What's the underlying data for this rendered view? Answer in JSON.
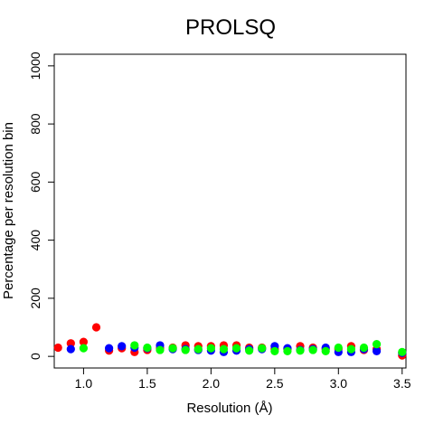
{
  "chart_data": {
    "type": "scatter",
    "title": "PROLSQ",
    "xlabel": "Resolution (Å)",
    "ylabel": "Percentage per resolution bin",
    "xlim": [
      0.77,
      3.53
    ],
    "ylim": [
      -40,
      1040
    ],
    "xticks": [
      1.0,
      1.5,
      2.0,
      2.5,
      3.0,
      3.5
    ],
    "xtick_labels": [
      "1.0",
      "1.5",
      "2.0",
      "2.5",
      "3.0",
      "3.5"
    ],
    "yticks": [
      0,
      200,
      400,
      600,
      800,
      1000
    ],
    "ytick_labels": [
      "0",
      "200",
      "400",
      "600",
      "800",
      "1000"
    ],
    "series": [
      {
        "name": "red",
        "color": "#ff0000",
        "points": [
          [
            0.8,
            30
          ],
          [
            0.9,
            45
          ],
          [
            1.0,
            50
          ],
          [
            1.1,
            100
          ],
          [
            1.2,
            20
          ],
          [
            1.3,
            28
          ],
          [
            1.4,
            15
          ],
          [
            1.5,
            22
          ],
          [
            1.6,
            28
          ],
          [
            1.7,
            30
          ],
          [
            1.8,
            38
          ],
          [
            1.9,
            35
          ],
          [
            2.0,
            35
          ],
          [
            2.1,
            38
          ],
          [
            2.2,
            38
          ],
          [
            2.3,
            30
          ],
          [
            2.4,
            30
          ],
          [
            2.5,
            25
          ],
          [
            2.6,
            25
          ],
          [
            2.7,
            35
          ],
          [
            2.8,
            30
          ],
          [
            2.9,
            25
          ],
          [
            3.0,
            25
          ],
          [
            3.1,
            35
          ],
          [
            3.2,
            22
          ],
          [
            3.3,
            25
          ],
          [
            3.5,
            3
          ]
        ]
      },
      {
        "name": "blue",
        "color": "#0000ff",
        "points": [
          [
            0.9,
            25
          ],
          [
            1.2,
            28
          ],
          [
            1.3,
            35
          ],
          [
            1.4,
            30
          ],
          [
            1.5,
            28
          ],
          [
            1.6,
            38
          ],
          [
            1.7,
            25
          ],
          [
            1.8,
            25
          ],
          [
            1.9,
            22
          ],
          [
            2.0,
            20
          ],
          [
            2.1,
            15
          ],
          [
            2.2,
            20
          ],
          [
            2.3,
            25
          ],
          [
            2.4,
            25
          ],
          [
            2.5,
            35
          ],
          [
            2.6,
            28
          ],
          [
            2.7,
            22
          ],
          [
            2.8,
            25
          ],
          [
            2.9,
            30
          ],
          [
            3.0,
            15
          ],
          [
            3.1,
            15
          ],
          [
            3.2,
            25
          ],
          [
            3.3,
            18
          ],
          [
            3.5,
            12
          ]
        ]
      },
      {
        "name": "green",
        "color": "#00ff00",
        "points": [
          [
            1.0,
            28
          ],
          [
            1.4,
            38
          ],
          [
            1.5,
            30
          ],
          [
            1.6,
            22
          ],
          [
            1.7,
            28
          ],
          [
            1.8,
            22
          ],
          [
            1.9,
            25
          ],
          [
            2.0,
            28
          ],
          [
            2.1,
            25
          ],
          [
            2.2,
            28
          ],
          [
            2.3,
            20
          ],
          [
            2.4,
            28
          ],
          [
            2.5,
            18
          ],
          [
            2.6,
            18
          ],
          [
            2.7,
            20
          ],
          [
            2.8,
            22
          ],
          [
            2.9,
            18
          ],
          [
            3.0,
            30
          ],
          [
            3.1,
            25
          ],
          [
            3.2,
            30
          ],
          [
            3.3,
            42
          ],
          [
            3.5,
            15
          ]
        ]
      }
    ]
  }
}
